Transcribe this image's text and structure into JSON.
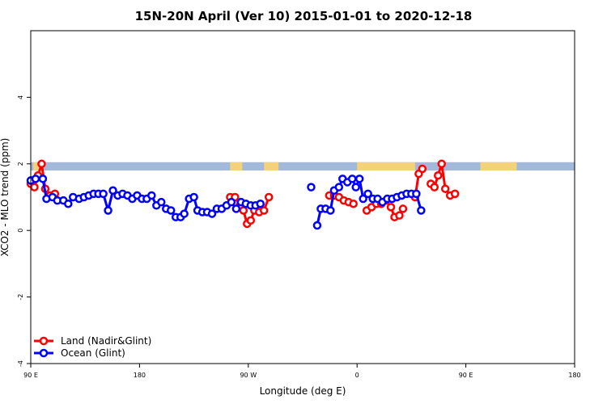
{
  "chart_data": {
    "type": "line",
    "title": "15N-20N April (Ver 10)   2015-01-01 to 2020-12-18",
    "xlabel": "Longitude (deg E)",
    "ylabel": "XCO2 - MLO trend (ppm)",
    "xlim": [
      90,
      450
    ],
    "ylim": [
      -4,
      6
    ],
    "x_ticks": [
      {
        "value": 90,
        "label": "90 E"
      },
      {
        "value": 180,
        "label": "180"
      },
      {
        "value": 270,
        "label": "90 W"
      },
      {
        "value": 360,
        "label": "0"
      },
      {
        "value": 450,
        "label": "90 E"
      },
      {
        "value": 540,
        "label": "180"
      }
    ],
    "y_ticks": [
      {
        "value": -4,
        "label": "-4"
      },
      {
        "value": -2,
        "label": "-2"
      },
      {
        "value": 0,
        "label": "0"
      },
      {
        "value": 2,
        "label": "2"
      },
      {
        "value": 4,
        "label": "4"
      }
    ],
    "xlim_display": [
      90,
      540
    ],
    "land_mask_band": {
      "y_range": [
        1.8,
        2.05
      ],
      "ocean_color": "#a3b9dc",
      "land_color": "#f4d27a",
      "land_segments": [
        [
          92,
          101
        ],
        [
          255,
          265
        ],
        [
          283,
          295
        ],
        [
          360,
          408
        ],
        [
          462,
          492
        ]
      ]
    },
    "legend": {
      "position": "bottom-left"
    },
    "series": [
      {
        "name": "Land (Nadir&Glint)",
        "color": "#ff0000",
        "segments": [
          [
            [
              90,
              1.4
            ],
            [
              93,
              1.3
            ],
            [
              96,
              1.65
            ],
            [
              99,
              2.0
            ],
            [
              102,
              1.25
            ],
            [
              106,
              1.05
            ],
            [
              110,
              1.1
            ]
          ],
          [
            [
              255,
              1.0
            ],
            [
              259,
              1.0
            ],
            [
              263,
              0.75
            ],
            [
              266,
              0.6
            ],
            [
              269,
              0.2
            ],
            [
              272,
              0.3
            ],
            [
              275,
              0.6
            ],
            [
              279,
              0.55
            ],
            [
              283,
              0.6
            ],
            [
              287,
              1.0
            ]
          ],
          [
            [
              337,
              1.05
            ],
            [
              341,
              1.05
            ],
            [
              345,
              1.0
            ],
            [
              349,
              0.9
            ],
            [
              353,
              0.85
            ],
            [
              357,
              0.8
            ]
          ],
          [
            [
              368,
              0.6
            ],
            [
              372,
              0.7
            ],
            [
              376,
              0.8
            ],
            [
              380,
              0.8
            ],
            [
              384,
              0.9
            ],
            [
              388,
              0.7
            ],
            [
              391,
              0.4
            ],
            [
              395,
              0.45
            ],
            [
              398,
              0.65
            ]
          ],
          [
            [
              408,
              1.0
            ],
            [
              411,
              1.7
            ],
            [
              414,
              1.85
            ]
          ],
          [
            [
              421,
              1.4
            ],
            [
              424,
              1.3
            ],
            [
              427,
              1.65
            ],
            [
              430,
              2.0
            ],
            [
              433,
              1.25
            ],
            [
              437,
              1.05
            ],
            [
              441,
              1.1
            ]
          ]
        ]
      },
      {
        "name": "Ocean (Glint)",
        "color": "#0000ff",
        "segments": [
          [
            [
              90,
              1.5
            ],
            [
              94,
              1.55
            ],
            [
              100,
              1.55
            ],
            [
              103,
              0.95
            ],
            [
              108,
              1.0
            ],
            [
              112,
              0.9
            ],
            [
              117,
              0.9
            ],
            [
              121,
              0.8
            ],
            [
              125,
              1.0
            ],
            [
              130,
              0.95
            ],
            [
              134,
              1.0
            ],
            [
              138,
              1.05
            ],
            [
              142,
              1.1
            ],
            [
              146,
              1.1
            ],
            [
              150,
              1.1
            ],
            [
              154,
              0.6
            ],
            [
              158,
              1.2
            ],
            [
              162,
              1.05
            ],
            [
              166,
              1.1
            ],
            [
              170,
              1.05
            ],
            [
              174,
              0.95
            ],
            [
              178,
              1.05
            ],
            [
              182,
              0.95
            ],
            [
              186,
              0.95
            ],
            [
              190,
              1.05
            ],
            [
              194,
              0.75
            ],
            [
              198,
              0.85
            ],
            [
              202,
              0.65
            ],
            [
              206,
              0.6
            ],
            [
              210,
              0.4
            ],
            [
              214,
              0.4
            ],
            [
              217,
              0.5
            ],
            [
              221,
              0.95
            ],
            [
              225,
              1.0
            ],
            [
              228,
              0.6
            ],
            [
              232,
              0.55
            ],
            [
              236,
              0.55
            ],
            [
              240,
              0.5
            ],
            [
              244,
              0.65
            ],
            [
              248,
              0.65
            ],
            [
              252,
              0.75
            ],
            [
              256,
              0.85
            ],
            [
              260,
              0.65
            ],
            [
              264,
              0.85
            ],
            [
              268,
              0.8
            ],
            [
              272,
              0.75
            ],
            [
              276,
              0.75
            ],
            [
              280,
              0.8
            ]
          ],
          [
            [
              322,
              1.3
            ]
          ],
          [
            [
              327,
              0.15
            ],
            [
              330,
              0.65
            ],
            [
              334,
              0.65
            ],
            [
              338,
              0.6
            ],
            [
              341,
              1.2
            ],
            [
              345,
              1.3
            ],
            [
              348,
              1.55
            ],
            [
              352,
              1.45
            ],
            [
              356,
              1.55
            ],
            [
              359,
              1.3
            ],
            [
              362,
              1.55
            ],
            [
              365,
              0.95
            ],
            [
              369,
              1.1
            ],
            [
              373,
              0.95
            ],
            [
              377,
              0.95
            ],
            [
              381,
              0.85
            ],
            [
              385,
              0.95
            ],
            [
              389,
              0.95
            ],
            [
              393,
              1.0
            ],
            [
              397,
              1.05
            ],
            [
              401,
              1.1
            ],
            [
              405,
              1.1
            ],
            [
              409,
              1.1
            ],
            [
              413,
              0.6
            ]
          ]
        ]
      }
    ]
  }
}
